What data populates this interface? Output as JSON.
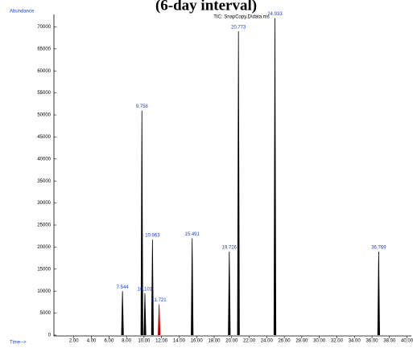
{
  "chart_data": {
    "type": "chromatogram",
    "title": "(6-day interval)",
    "subtitle": "TIC: SnapCopy.D\\data.ms",
    "y_label": "Abundance",
    "x_label": "Time-->",
    "x": [
      7.544,
      9.758,
      10.101,
      10.963,
      11.721,
      15.491,
      19.726,
      20.773,
      24.933,
      36.769
    ],
    "values": [
      10000,
      51000,
      9500,
      21700,
      7000,
      22000,
      19000,
      69000,
      72000,
      19000
    ],
    "colors": [
      "#000000",
      "#000000",
      "#000000",
      "#000000",
      "#c00000",
      "#000000",
      "#000000",
      "#000000",
      "#000000",
      "#000000"
    ],
    "xlim": [
      0,
      40.5
    ],
    "ylim": [
      0,
      74000
    ],
    "xticks": [
      {
        "value": 2,
        "label": "2.00"
      },
      {
        "value": 4,
        "label": "4.00"
      },
      {
        "value": 6,
        "label": "6.00"
      },
      {
        "value": 8,
        "label": "8.00"
      },
      {
        "value": 10,
        "label": "10.00"
      },
      {
        "value": 12,
        "label": "12.00"
      },
      {
        "value": 14,
        "label": "14.00"
      },
      {
        "value": 16,
        "label": "16.00"
      },
      {
        "value": 18,
        "label": "18.00"
      },
      {
        "value": 20,
        "label": "20.00"
      },
      {
        "value": 22,
        "label": "22.00"
      },
      {
        "value": 24,
        "label": "24.00"
      },
      {
        "value": 26,
        "label": "26.00"
      },
      {
        "value": 28,
        "label": "28.00"
      },
      {
        "value": 30,
        "label": "30.00"
      },
      {
        "value": 32,
        "label": "32.00"
      },
      {
        "value": 34,
        "label": "34.00"
      },
      {
        "value": 36,
        "label": "36.00"
      },
      {
        "value": 38,
        "label": "38.00"
      },
      {
        "value": 40,
        "label": "40.00"
      }
    ],
    "yticks": [
      0,
      5000,
      10000,
      15000,
      20000,
      25000,
      30000,
      35000,
      40000,
      45000,
      50000,
      55000,
      60000,
      65000,
      70000
    ]
  }
}
